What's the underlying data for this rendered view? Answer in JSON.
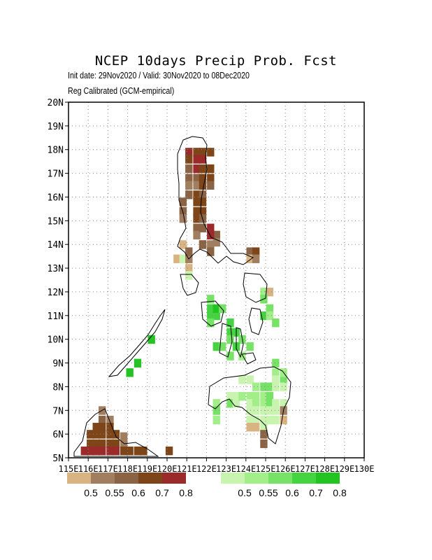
{
  "title": "NCEP 10days Precip Prob. Fcst",
  "subtitle_line1": "Init date: 29Nov2020 / Valid: 30Nov2020 to 08Dec2020",
  "subtitle_line2": "Reg Calibrated (GCM-empirical)",
  "axes": {
    "x_labels": [
      "115E",
      "116E",
      "117E",
      "118E",
      "119E",
      "120E",
      "121E",
      "122E",
      "123E",
      "124E",
      "125E",
      "126E",
      "127E",
      "128E",
      "129E",
      "130E"
    ],
    "y_labels": [
      "5N",
      "6N",
      "7N",
      "8N",
      "9N",
      "10N",
      "11N",
      "12N",
      "13N",
      "14N",
      "15N",
      "16N",
      "17N",
      "18N",
      "19N",
      "20N"
    ],
    "lon_range": [
      115,
      130
    ],
    "lat_range": [
      5,
      20
    ],
    "grid": "dotted"
  },
  "legend_dry": {
    "labels": [
      "0.5",
      "0.55",
      "0.6",
      "0.7",
      "0.8"
    ],
    "colors": [
      "#d9b381",
      "#a27e60",
      "#8a6244",
      "#7d4518",
      "#9b2b2b"
    ]
  },
  "legend_wet": {
    "labels": [
      "0.5",
      "0.55",
      "0.6",
      "0.7",
      "0.8"
    ],
    "colors": [
      "#c8f4b0",
      "#a2ef8a",
      "#76e266",
      "#44d441",
      "#22c421"
    ]
  },
  "colors": {
    "D1": "#d9b381",
    "D2": "#a27e60",
    "D3": "#8a6244",
    "D4": "#7d4518",
    "D5": "#9b2b2b",
    "W1": "#c8f4b0",
    "W2": "#a2ef8a",
    "W3": "#76e266",
    "W4": "#44d441",
    "W5": "#22c421"
  },
  "cells": [
    {
      "lon": 121.1,
      "lat": 17.9,
      "c": "D5"
    },
    {
      "lon": 121.1,
      "lat": 17.6,
      "c": "D4"
    },
    {
      "lon": 121.1,
      "lat": 17.2,
      "c": "D3"
    },
    {
      "lon": 121.1,
      "lat": 16.8,
      "c": "D3"
    },
    {
      "lon": 121.1,
      "lat": 16.5,
      "c": "D2"
    },
    {
      "lon": 121.1,
      "lat": 16.1,
      "c": "D3"
    },
    {
      "lon": 121.5,
      "lat": 17.9,
      "c": "D4"
    },
    {
      "lon": 121.5,
      "lat": 17.6,
      "c": "D5"
    },
    {
      "lon": 121.5,
      "lat": 17.2,
      "c": "D5"
    },
    {
      "lon": 121.5,
      "lat": 16.8,
      "c": "D3"
    },
    {
      "lon": 121.5,
      "lat": 16.5,
      "c": "D2"
    },
    {
      "lon": 121.5,
      "lat": 16.1,
      "c": "D4"
    },
    {
      "lon": 121.5,
      "lat": 15.8,
      "c": "D4"
    },
    {
      "lon": 121.5,
      "lat": 15.4,
      "c": "D4"
    },
    {
      "lon": 121.5,
      "lat": 15.1,
      "c": "D4"
    },
    {
      "lon": 121.5,
      "lat": 14.7,
      "c": "D3"
    },
    {
      "lon": 121.5,
      "lat": 14.4,
      "c": "D2"
    },
    {
      "lon": 121.8,
      "lat": 17.9,
      "c": "D4"
    },
    {
      "lon": 121.8,
      "lat": 17.6,
      "c": "D5"
    },
    {
      "lon": 121.8,
      "lat": 17.2,
      "c": "D4"
    },
    {
      "lon": 121.8,
      "lat": 16.8,
      "c": "D4"
    },
    {
      "lon": 121.8,
      "lat": 16.5,
      "c": "D4"
    },
    {
      "lon": 121.8,
      "lat": 16.1,
      "c": "D3"
    },
    {
      "lon": 121.8,
      "lat": 15.8,
      "c": "D4"
    },
    {
      "lon": 121.8,
      "lat": 15.4,
      "c": "D4"
    },
    {
      "lon": 121.8,
      "lat": 15.1,
      "c": "D3"
    },
    {
      "lon": 121.8,
      "lat": 14.7,
      "c": "D3"
    },
    {
      "lon": 121.8,
      "lat": 14.0,
      "c": "D2"
    },
    {
      "lon": 122.2,
      "lat": 17.9,
      "c": "D4"
    },
    {
      "lon": 122.2,
      "lat": 17.2,
      "c": "D4"
    },
    {
      "lon": 122.2,
      "lat": 16.8,
      "c": "D4"
    },
    {
      "lon": 122.2,
      "lat": 16.5,
      "c": "D3"
    },
    {
      "lon": 120.8,
      "lat": 15.8,
      "c": "D3"
    },
    {
      "lon": 120.8,
      "lat": 15.4,
      "c": "D3"
    },
    {
      "lon": 120.8,
      "lat": 15.1,
      "c": "D2"
    },
    {
      "lon": 120.8,
      "lat": 14.0,
      "c": "D1"
    },
    {
      "lon": 120.5,
      "lat": 13.4,
      "c": "D1"
    },
    {
      "lon": 120.8,
      "lat": 13.4,
      "c": "W1"
    },
    {
      "lon": 121.1,
      "lat": 13.4,
      "c": "D2"
    },
    {
      "lon": 121.1,
      "lat": 13.7,
      "c": "D3"
    },
    {
      "lon": 121.1,
      "lat": 13.0,
      "c": "D1"
    },
    {
      "lon": 121.1,
      "lat": 12.7,
      "c": "W1"
    },
    {
      "lon": 121.8,
      "lat": 14.0,
      "c": "D3"
    },
    {
      "lon": 122.2,
      "lat": 14.0,
      "c": "D2"
    },
    {
      "lon": 122.5,
      "lat": 14.4,
      "c": "D3"
    },
    {
      "lon": 122.2,
      "lat": 14.4,
      "c": "D5"
    },
    {
      "lon": 122.2,
      "lat": 14.7,
      "c": "D5"
    },
    {
      "lon": 122.2,
      "lat": 13.7,
      "c": "D3"
    },
    {
      "lon": 122.5,
      "lat": 14.1,
      "c": "D2"
    },
    {
      "lon": 124.2,
      "lat": 13.7,
      "c": "D3"
    },
    {
      "lon": 124.5,
      "lat": 13.7,
      "c": "D4"
    },
    {
      "lon": 124.2,
      "lat": 13.4,
      "c": "D1"
    },
    {
      "lon": 124.5,
      "lat": 13.4,
      "c": "D2"
    },
    {
      "lon": 124.9,
      "lat": 12.0,
      "c": "W2"
    },
    {
      "lon": 125.2,
      "lat": 12.0,
      "c": "D1"
    },
    {
      "lon": 124.9,
      "lat": 11.7,
      "c": "W3"
    },
    {
      "lon": 124.9,
      "lat": 11.0,
      "c": "W4"
    },
    {
      "lon": 125.2,
      "lat": 11.3,
      "c": "W3"
    },
    {
      "lon": 125.2,
      "lat": 11.0,
      "c": "W2"
    },
    {
      "lon": 125.5,
      "lat": 10.7,
      "c": "W3"
    },
    {
      "lon": 122.2,
      "lat": 11.7,
      "c": "W3"
    },
    {
      "lon": 122.2,
      "lat": 11.3,
      "c": "W4"
    },
    {
      "lon": 122.2,
      "lat": 11.0,
      "c": "W4"
    },
    {
      "lon": 122.5,
      "lat": 11.0,
      "c": "W4"
    },
    {
      "lon": 122.5,
      "lat": 11.3,
      "c": "W5"
    },
    {
      "lon": 122.2,
      "lat": 10.7,
      "c": "W3"
    },
    {
      "lon": 122.8,
      "lat": 11.3,
      "c": "W3"
    },
    {
      "lon": 123.2,
      "lat": 10.7,
      "c": "W4"
    },
    {
      "lon": 123.2,
      "lat": 10.3,
      "c": "W4"
    },
    {
      "lon": 123.5,
      "lat": 10.3,
      "c": "W4"
    },
    {
      "lon": 123.8,
      "lat": 10.0,
      "c": "W3"
    },
    {
      "lon": 123.2,
      "lat": 10.0,
      "c": "W3"
    },
    {
      "lon": 122.5,
      "lat": 9.7,
      "c": "W4"
    },
    {
      "lon": 122.8,
      "lat": 9.7,
      "c": "W3"
    },
    {
      "lon": 123.5,
      "lat": 9.7,
      "c": "W4"
    },
    {
      "lon": 123.2,
      "lat": 9.3,
      "c": "W3"
    },
    {
      "lon": 124.2,
      "lat": 9.7,
      "c": "W3"
    },
    {
      "lon": 123.8,
      "lat": 9.3,
      "c": "W2"
    },
    {
      "lon": 119.2,
      "lat": 10.0,
      "c": "W5"
    },
    {
      "lon": 118.5,
      "lat": 9.0,
      "c": "W5"
    },
    {
      "lon": 118.1,
      "lat": 8.6,
      "c": "W5"
    },
    {
      "lon": 125.5,
      "lat": 9.0,
      "c": "W3"
    },
    {
      "lon": 125.5,
      "lat": 8.6,
      "c": "W2"
    },
    {
      "lon": 125.9,
      "lat": 8.3,
      "c": "W3"
    },
    {
      "lon": 125.9,
      "lat": 8.6,
      "c": "W2"
    },
    {
      "lon": 125.5,
      "lat": 8.3,
      "c": "W1"
    },
    {
      "lon": 123.8,
      "lat": 8.3,
      "c": "W1"
    },
    {
      "lon": 124.2,
      "lat": 8.3,
      "c": "W1"
    },
    {
      "lon": 124.5,
      "lat": 8.0,
      "c": "W2"
    },
    {
      "lon": 124.9,
      "lat": 8.0,
      "c": "W3"
    },
    {
      "lon": 125.2,
      "lat": 8.0,
      "c": "W3"
    },
    {
      "lon": 125.5,
      "lat": 8.0,
      "c": "W1"
    },
    {
      "lon": 125.9,
      "lat": 8.0,
      "c": "W1"
    },
    {
      "lon": 122.5,
      "lat": 7.3,
      "c": "W2"
    },
    {
      "lon": 122.5,
      "lat": 7.0,
      "c": "W3"
    },
    {
      "lon": 122.5,
      "lat": 6.6,
      "c": "W2"
    },
    {
      "lon": 123.2,
      "lat": 7.6,
      "c": "W1"
    },
    {
      "lon": 123.2,
      "lat": 7.3,
      "c": "W3"
    },
    {
      "lon": 123.5,
      "lat": 7.6,
      "c": "W1"
    },
    {
      "lon": 123.5,
      "lat": 7.3,
      "c": "W1"
    },
    {
      "lon": 123.8,
      "lat": 7.6,
      "c": "W2"
    },
    {
      "lon": 124.2,
      "lat": 7.6,
      "c": "W2"
    },
    {
      "lon": 124.5,
      "lat": 7.6,
      "c": "W2"
    },
    {
      "lon": 124.9,
      "lat": 7.6,
      "c": "W2"
    },
    {
      "lon": 125.2,
      "lat": 7.6,
      "c": "W3"
    },
    {
      "lon": 124.2,
      "lat": 7.3,
      "c": "W1"
    },
    {
      "lon": 124.5,
      "lat": 7.3,
      "c": "W2"
    },
    {
      "lon": 124.9,
      "lat": 7.3,
      "c": "W2"
    },
    {
      "lon": 125.2,
      "lat": 7.3,
      "c": "W3"
    },
    {
      "lon": 125.5,
      "lat": 7.3,
      "c": "W1"
    },
    {
      "lon": 125.9,
      "lat": 7.3,
      "c": "W1"
    },
    {
      "lon": 124.2,
      "lat": 7.0,
      "c": "W1"
    },
    {
      "lon": 124.5,
      "lat": 7.0,
      "c": "W1"
    },
    {
      "lon": 124.9,
      "lat": 7.0,
      "c": "W1"
    },
    {
      "lon": 125.2,
      "lat": 7.0,
      "c": "W1"
    },
    {
      "lon": 125.5,
      "lat": 7.0,
      "c": "W1"
    },
    {
      "lon": 124.2,
      "lat": 6.6,
      "c": "W1"
    },
    {
      "lon": 124.5,
      "lat": 6.6,
      "c": "W1"
    },
    {
      "lon": 124.9,
      "lat": 6.6,
      "c": "W1"
    },
    {
      "lon": 125.2,
      "lat": 6.6,
      "c": "W1"
    },
    {
      "lon": 125.5,
      "lat": 6.6,
      "c": "W1"
    },
    {
      "lon": 125.9,
      "lat": 7.0,
      "c": "D2"
    },
    {
      "lon": 125.9,
      "lat": 6.6,
      "c": "D1"
    },
    {
      "lon": 124.2,
      "lat": 6.3,
      "c": "D1"
    },
    {
      "lon": 124.5,
      "lat": 6.3,
      "c": "D1"
    },
    {
      "lon": 124.9,
      "lat": 6.3,
      "c": "W1"
    },
    {
      "lon": 124.9,
      "lat": 6.0,
      "c": "D3"
    },
    {
      "lon": 124.9,
      "lat": 5.6,
      "c": "D3"
    },
    {
      "lon": 116.7,
      "lat": 7.0,
      "c": "D2"
    },
    {
      "lon": 116.7,
      "lat": 6.6,
      "c": "D3"
    },
    {
      "lon": 117.1,
      "lat": 6.6,
      "c": "D2"
    },
    {
      "lon": 116.4,
      "lat": 6.3,
      "c": "D4"
    },
    {
      "lon": 116.7,
      "lat": 6.3,
      "c": "D4"
    },
    {
      "lon": 117.1,
      "lat": 6.3,
      "c": "D4"
    },
    {
      "lon": 116.1,
      "lat": 6.0,
      "c": "D4"
    },
    {
      "lon": 116.4,
      "lat": 6.0,
      "c": "D4"
    },
    {
      "lon": 116.7,
      "lat": 6.0,
      "c": "D4"
    },
    {
      "lon": 117.1,
      "lat": 6.0,
      "c": "D4"
    },
    {
      "lon": 117.4,
      "lat": 6.0,
      "c": "D4"
    },
    {
      "lon": 116.1,
      "lat": 5.6,
      "c": "D4"
    },
    {
      "lon": 116.4,
      "lat": 5.6,
      "c": "D4"
    },
    {
      "lon": 116.7,
      "lat": 5.6,
      "c": "D4"
    },
    {
      "lon": 117.1,
      "lat": 5.6,
      "c": "D4"
    },
    {
      "lon": 117.4,
      "lat": 5.6,
      "c": "D4"
    },
    {
      "lon": 117.8,
      "lat": 5.6,
      "c": "D2"
    },
    {
      "lon": 117.8,
      "lat": 5.9,
      "c": "D2"
    },
    {
      "lon": 115.8,
      "lat": 5.3,
      "c": "D5"
    },
    {
      "lon": 116.1,
      "lat": 5.3,
      "c": "D5"
    },
    {
      "lon": 116.4,
      "lat": 5.3,
      "c": "D5"
    },
    {
      "lon": 116.7,
      "lat": 5.3,
      "c": "D5"
    },
    {
      "lon": 117.1,
      "lat": 5.3,
      "c": "D5"
    },
    {
      "lon": 117.4,
      "lat": 5.3,
      "c": "D5"
    },
    {
      "lon": 117.8,
      "lat": 5.3,
      "c": "D4"
    },
    {
      "lon": 118.1,
      "lat": 5.3,
      "c": "D4"
    },
    {
      "lon": 118.5,
      "lat": 5.3,
      "c": "D4"
    },
    {
      "lon": 118.8,
      "lat": 5.3,
      "c": "D4"
    },
    {
      "lon": 120.1,
      "lat": 5.3,
      "c": "D4"
    }
  ]
}
